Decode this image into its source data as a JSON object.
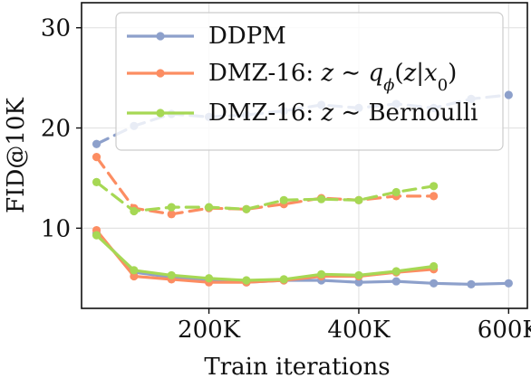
{
  "chart_data": {
    "type": "line",
    "title": "",
    "xlabel": "Train iterations",
    "ylabel": "FID@10K",
    "xlim": [
      30000,
      625000
    ],
    "ylim": [
      2.0,
      32.5
    ],
    "xticks": [
      200000,
      400000,
      600000
    ],
    "xtick_labels": [
      "200K",
      "400K",
      "600K"
    ],
    "yticks": [
      10,
      20,
      30
    ],
    "ytick_labels": [
      "10",
      "20",
      "30"
    ],
    "grid": true,
    "legend_placement": "top-right",
    "legend": [
      "DDPM",
      "DMZ-16: z ~ q_ϕ(z|x_0)",
      "DMZ-16: z ~ Bernoulli"
    ],
    "series": [
      {
        "name": "DDPM",
        "legend_index": 0,
        "style": "dashed",
        "color": "#8da0cb",
        "x": [
          50000,
          100000,
          150000,
          200000,
          250000,
          300000,
          350000,
          400000,
          450000,
          500000,
          550000,
          600000
        ],
        "values": [
          18.4,
          20.2,
          21.4,
          21.1,
          21.3,
          21.7,
          22.3,
          22.0,
          22.4,
          22.0,
          22.9,
          23.3
        ]
      },
      {
        "name": "DDPM",
        "legend_index": 0,
        "style": "solid",
        "color": "#8da0cb",
        "x": [
          50000,
          100000,
          150000,
          200000,
          250000,
          300000,
          350000,
          400000,
          450000,
          500000,
          550000,
          600000
        ],
        "values": [
          9.5,
          5.6,
          5.1,
          4.8,
          4.6,
          4.8,
          4.8,
          4.6,
          4.7,
          4.5,
          4.4,
          4.5
        ]
      },
      {
        "name": "DMZ-16: z ~ q_ϕ(z|x_0)",
        "legend_index": 1,
        "style": "dashed",
        "color": "#fc8d62",
        "x": [
          50000,
          100000,
          150000,
          200000,
          250000,
          300000,
          350000,
          400000,
          450000,
          500000
        ],
        "values": [
          17.1,
          12.0,
          11.4,
          12.0,
          11.9,
          12.4,
          13.0,
          12.8,
          13.2,
          13.2
        ]
      },
      {
        "name": "DMZ-16: z ~ q_ϕ(z|x_0)",
        "legend_index": 1,
        "style": "solid",
        "color": "#fc8d62",
        "x": [
          50000,
          100000,
          150000,
          200000,
          250000,
          300000,
          350000,
          400000,
          450000,
          500000
        ],
        "values": [
          9.8,
          5.2,
          4.9,
          4.6,
          4.6,
          4.8,
          5.2,
          5.2,
          5.6,
          5.9
        ]
      },
      {
        "name": "DMZ-16: z ~ Bernoulli",
        "legend_index": 2,
        "style": "dashed",
        "color": "#a6d854",
        "x": [
          50000,
          100000,
          150000,
          200000,
          250000,
          300000,
          350000,
          400000,
          450000,
          500000
        ],
        "values": [
          14.6,
          11.7,
          12.1,
          12.1,
          11.9,
          12.8,
          12.9,
          12.8,
          13.6,
          14.2
        ]
      },
      {
        "name": "DMZ-16: z ~ Bernoulli",
        "legend_index": 2,
        "style": "solid",
        "color": "#a6d854",
        "x": [
          50000,
          100000,
          150000,
          200000,
          250000,
          300000,
          350000,
          400000,
          450000,
          500000
        ],
        "values": [
          9.3,
          5.8,
          5.3,
          5.0,
          4.8,
          4.9,
          5.4,
          5.3,
          5.7,
          6.2
        ]
      }
    ]
  }
}
